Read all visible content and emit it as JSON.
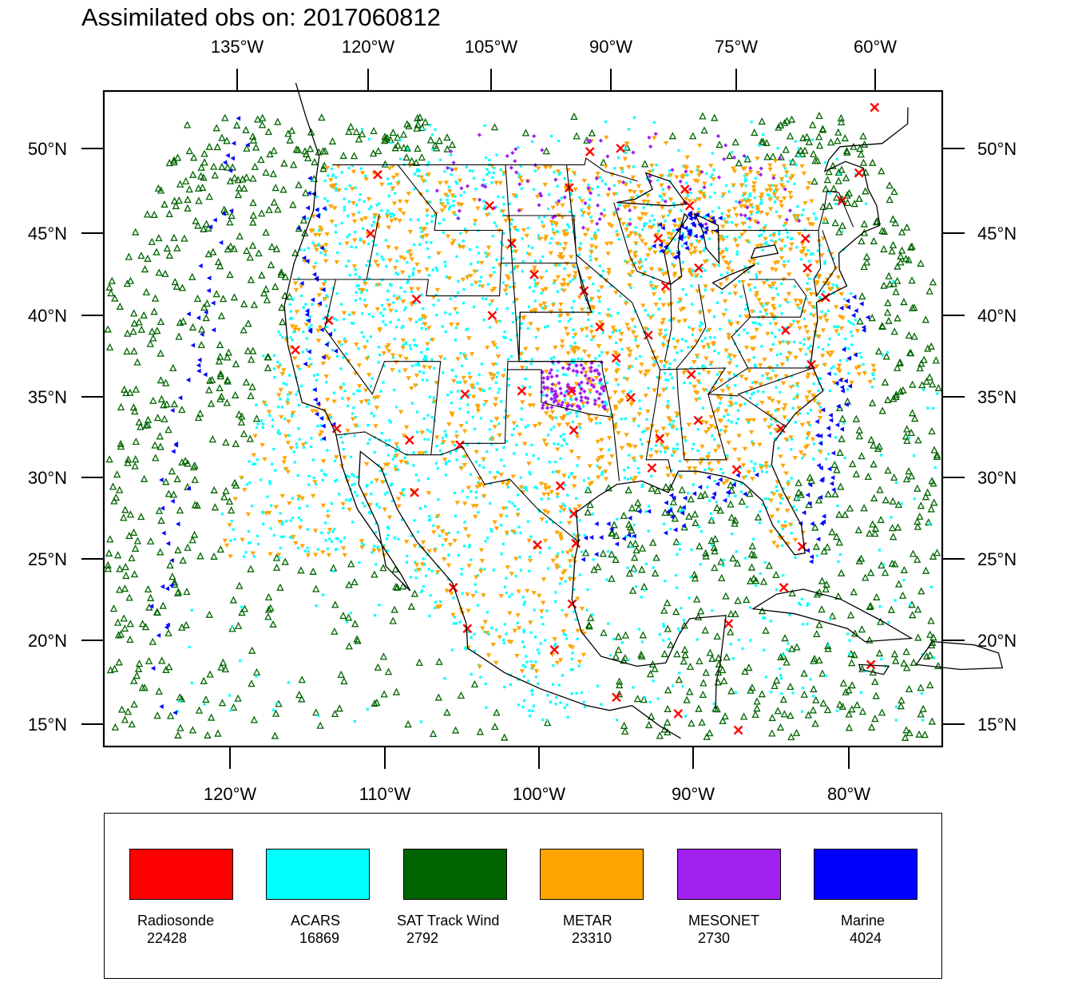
{
  "title": "Assimilated obs on: 2017060812",
  "map": {
    "top_axis": {
      "labels": [
        "135°W",
        "120°W",
        "105°W",
        "90°W",
        "75°W",
        "60°W"
      ]
    },
    "bottom_axis": {
      "labels": [
        "120°W",
        "110°W",
        "100°W",
        "90°W",
        "80°W"
      ]
    },
    "left_axis": {
      "labels": [
        "50°N",
        "45°N",
        "40°N",
        "35°N",
        "30°N",
        "25°N",
        "20°N",
        "15°N"
      ]
    },
    "right_axis": {
      "labels": [
        "50°N",
        "45°N",
        "40°N",
        "35°N",
        "30°N",
        "25°N",
        "20°N",
        "15°N"
      ]
    },
    "lat_range": [
      13.5,
      53.5
    ],
    "lon_range_at_bottom": [
      -128.2,
      -74.3
    ],
    "projection": "Lambert conformal (curved meridians)",
    "background": "#ffffff",
    "coastline_color": "#000000"
  },
  "legend": {
    "items": [
      {
        "name": "Radiosonde",
        "count": "22428",
        "color": "#ff0000",
        "marker": "x"
      },
      {
        "name": "ACARS",
        "count": "16869",
        "color": "#00ffff",
        "marker": "dot"
      },
      {
        "name": "SAT Track Wind",
        "count": "2792",
        "color": "#006400",
        "marker": "triangle"
      },
      {
        "name": "METAR",
        "count": "23310",
        "color": "#ffa500",
        "marker": "down-triangle"
      },
      {
        "name": "MESONET",
        "count": "2730",
        "color": "#a020f0",
        "marker": "diamond"
      },
      {
        "name": "Marine",
        "count": "4024",
        "color": "#0000ff",
        "marker": "left-triangle"
      }
    ]
  }
}
